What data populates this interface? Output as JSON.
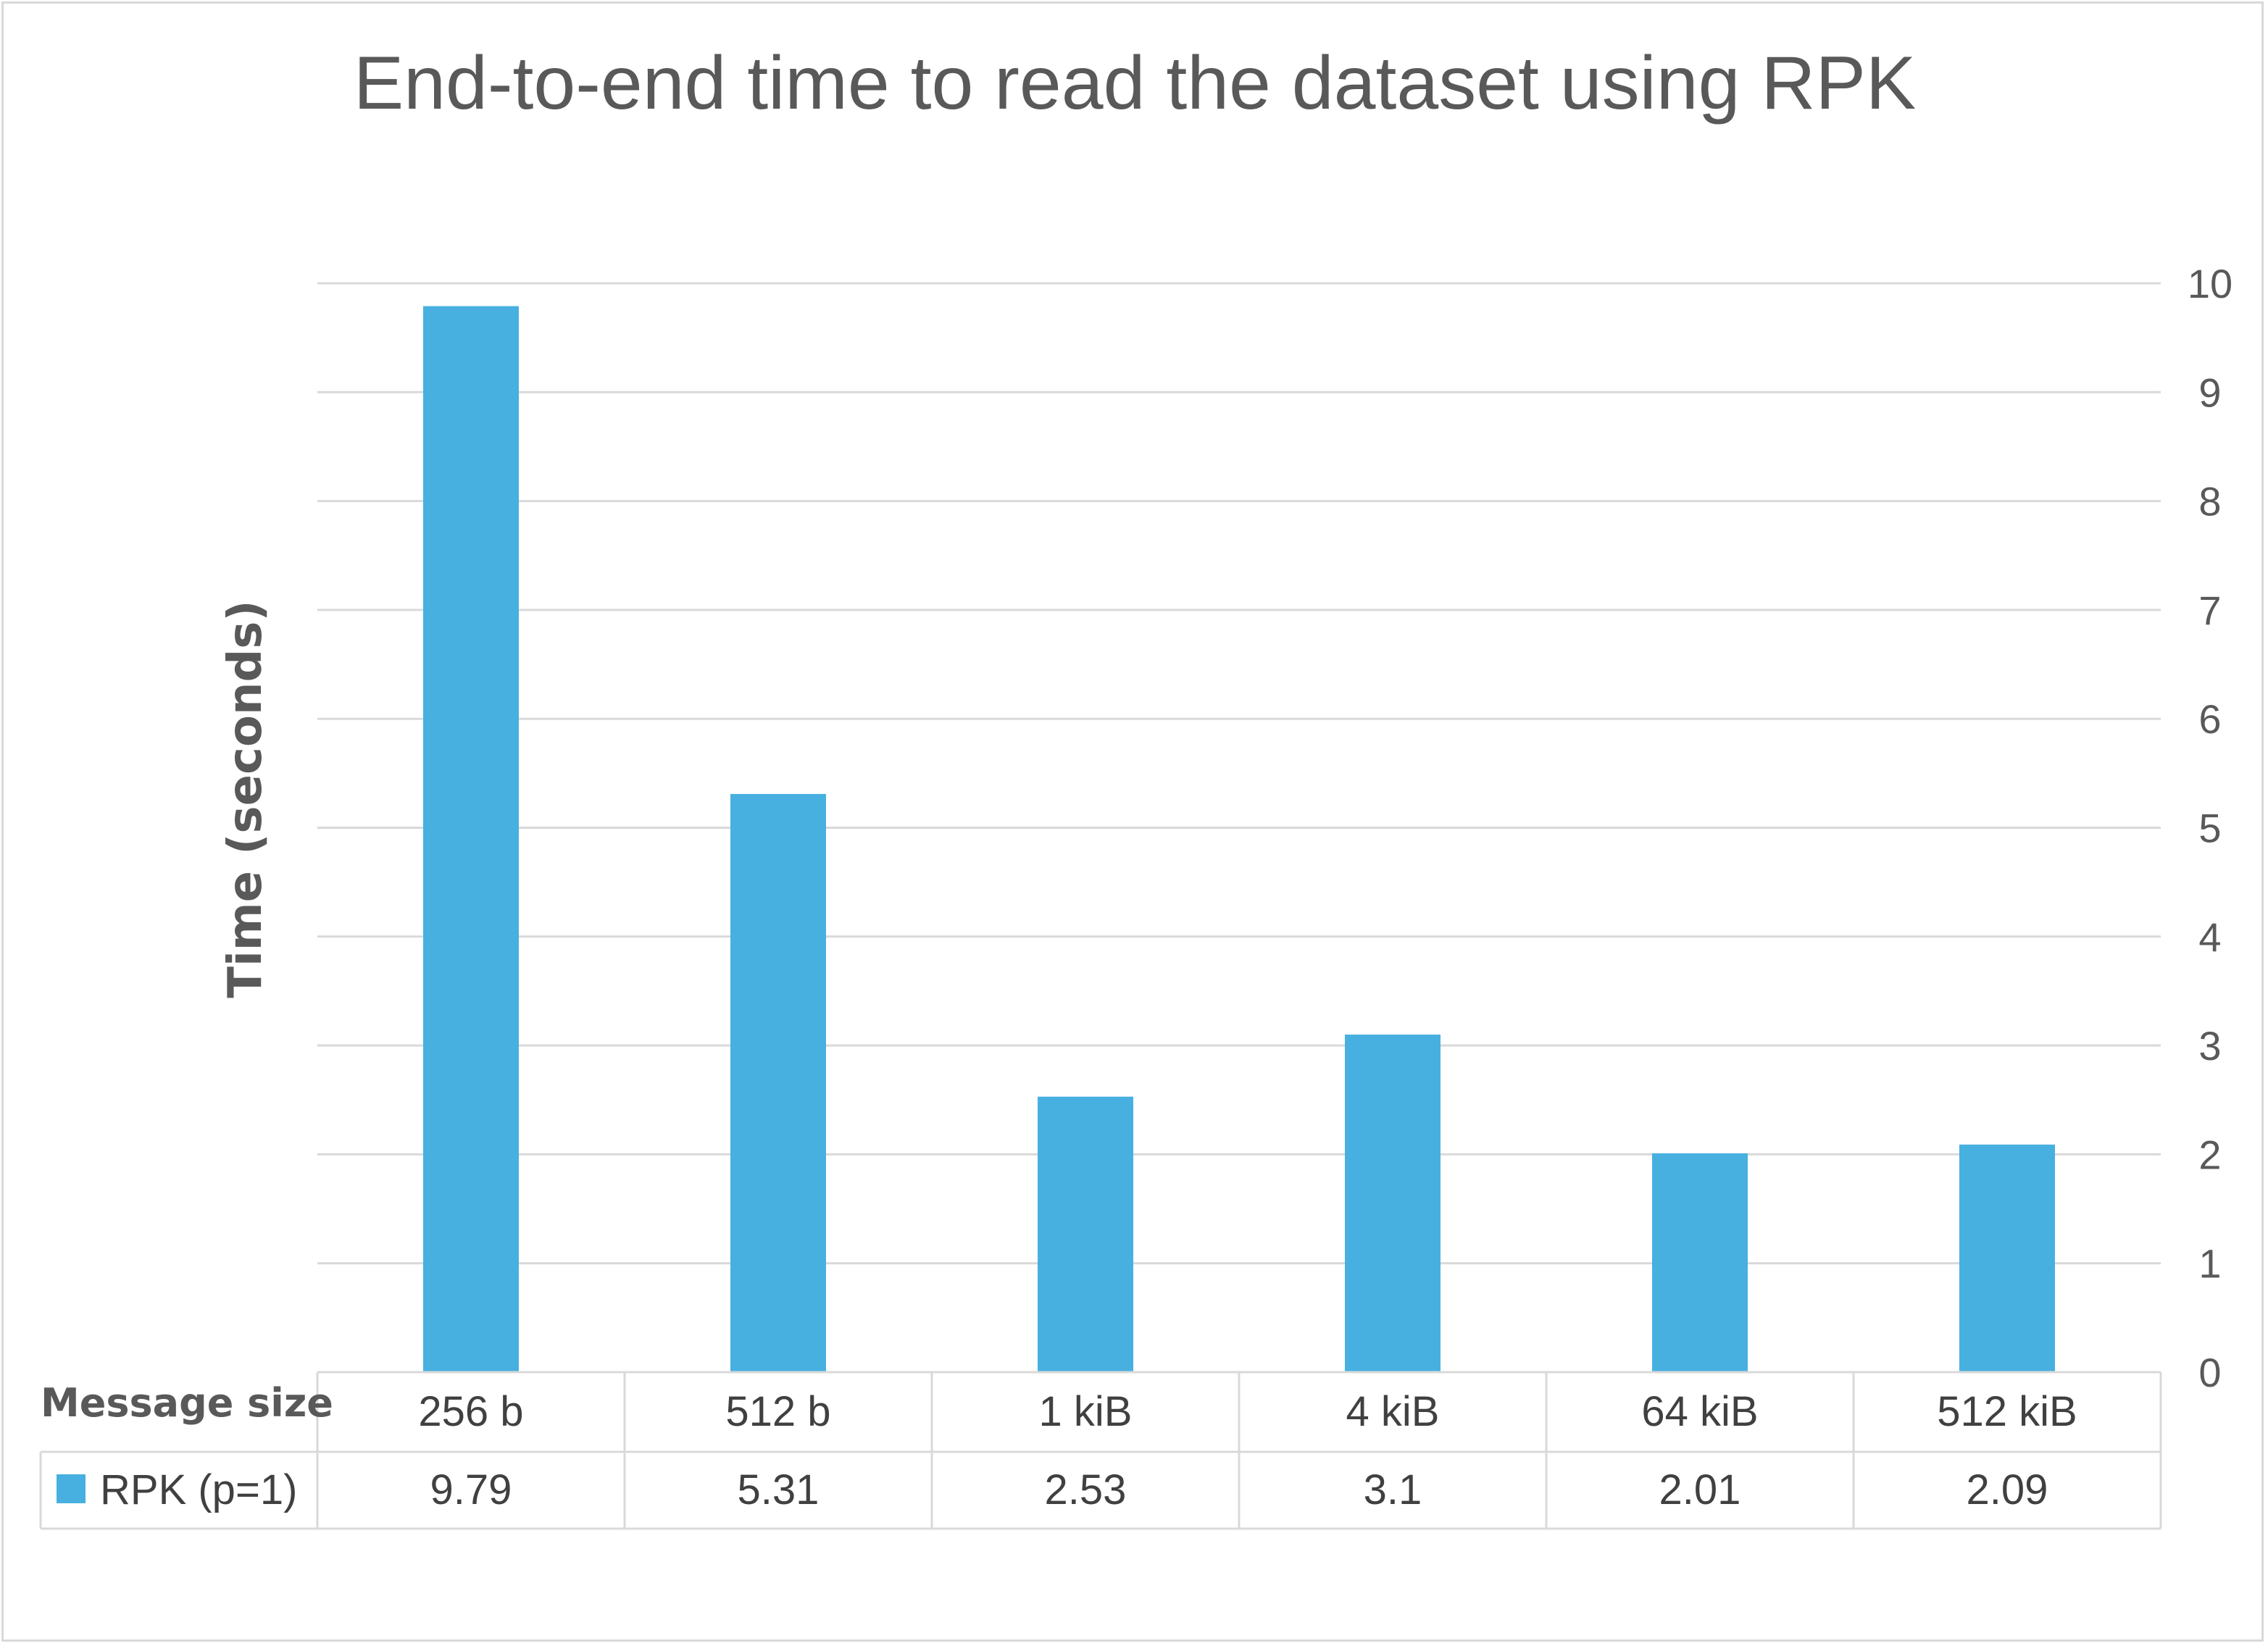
{
  "chart_data": {
    "type": "bar",
    "title": "End-to-end time to read the dataset using RPK",
    "ylabel": "Time (seconds)",
    "ylim": [
      0,
      10
    ],
    "y_ticks": [
      0,
      1,
      2,
      3,
      4,
      5,
      6,
      7,
      8,
      9,
      10
    ],
    "y_axis_side": "right",
    "grid": true,
    "categories": [
      "256 b",
      "512 b",
      "1 kiB",
      "4 kiB",
      "64 kiB",
      "512 kiB"
    ],
    "data_table": {
      "header_label": "Message size",
      "row_labels": [
        "9.79",
        "5.31",
        "2.53",
        "3.1",
        "2.01",
        "2.09"
      ]
    },
    "series": [
      {
        "name": "RPK (p=1)",
        "color": "#47b0e0",
        "values": [
          9.79,
          5.31,
          2.53,
          3.1,
          2.01,
          2.09
        ]
      }
    ]
  }
}
